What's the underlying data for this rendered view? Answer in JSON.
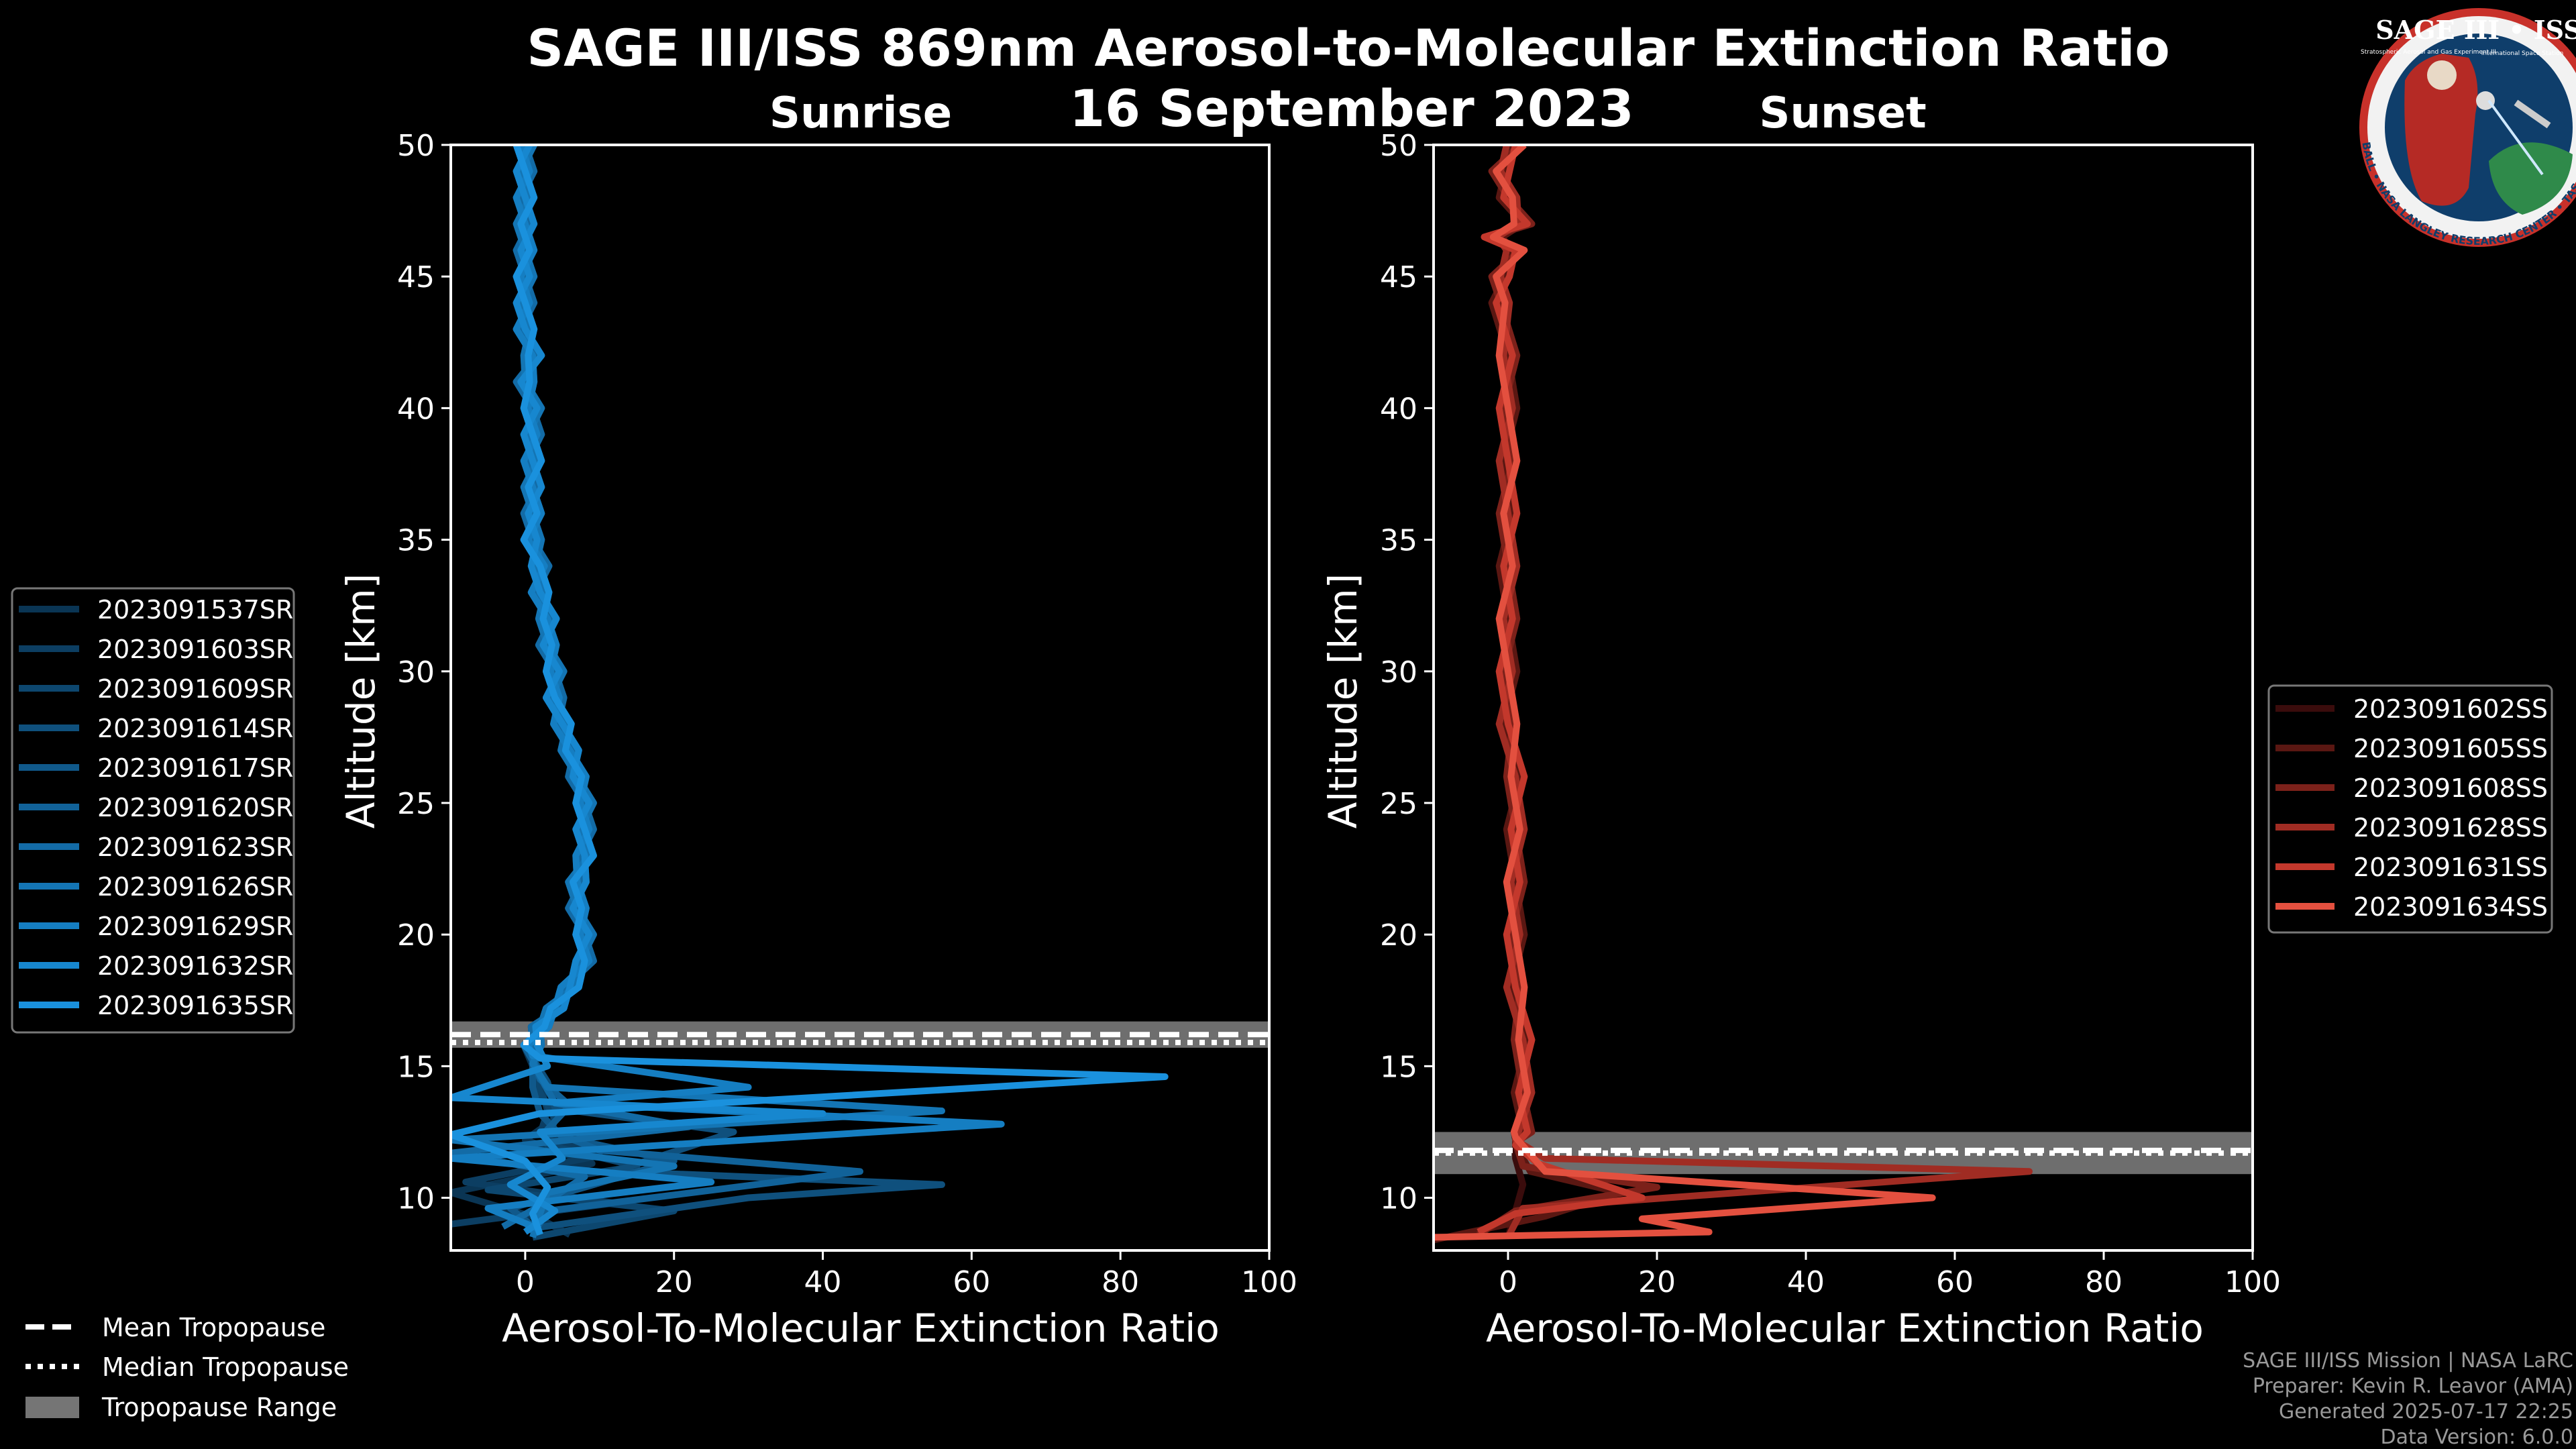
{
  "title_line1": "SAGE III/ISS 869nm Aerosol-to-Molecular Extinction Ratio",
  "title_line2": "16 September 2023",
  "logo": {
    "title": "SAGE III • ISS",
    "subtitle": "Stratospheric Aerosol and Gas Experiment III",
    "subtitle2": "International Space Station",
    "ring": "BALL • NASA LANGLEY RESEARCH CENTER • TAS-I • ESA"
  },
  "credits": [
    "SAGE III/ISS Mission | NASA LaRC",
    "Preparer: Kevin R. Leavor (AMA)",
    "Generated 2025-07-17 22:25",
    "Data Version: 6.0.0"
  ],
  "tropo_legend": {
    "mean": "Mean Tropopause",
    "median": "Median Tropopause",
    "range": "Tropopause Range"
  },
  "chart_data": [
    {
      "type": "line",
      "title": "Sunrise",
      "xlabel": "Aerosol-To-Molecular Extinction Ratio",
      "ylabel": "Altitude [km]",
      "xlim": [
        -10,
        100
      ],
      "ylim": [
        8,
        50
      ],
      "xticks": [
        0,
        20,
        40,
        60,
        80,
        100
      ],
      "yticks": [
        10,
        15,
        20,
        25,
        30,
        35,
        40,
        45,
        50
      ],
      "tropopause": {
        "mean": 16.2,
        "median": 15.9,
        "range": [
          15.7,
          16.7
        ]
      },
      "legend_position": "left",
      "series": [
        {
          "name": "2023091537SR",
          "color": "#0a3554",
          "x": [
            6,
            2,
            -10,
            9,
            0,
            4,
            2,
            1
          ],
          "y": [
            8.6,
            9.2,
            10.2,
            11.3,
            12.2,
            13.0,
            14.0,
            15.0
          ]
        },
        {
          "name": "2023091603SR",
          "color": "#0c3e62",
          "x": [
            -10,
            12,
            -8,
            10,
            2,
            3,
            2,
            1
          ],
          "y": [
            9.0,
            9.8,
            10.6,
            11.6,
            12.4,
            13.3,
            14.3,
            15.2
          ]
        },
        {
          "name": "2023091609SR",
          "color": "#0d476f",
          "x": [
            1,
            20,
            -5,
            15,
            3,
            4,
            2,
            1
          ],
          "y": [
            8.5,
            9.5,
            10.3,
            11.2,
            12.0,
            13.0,
            14.0,
            15.1
          ]
        },
        {
          "name": "2023091614SR",
          "color": "#0f507d",
          "x": [
            0,
            30,
            56,
            12,
            28,
            4,
            3,
            1
          ],
          "y": [
            8.8,
            10.0,
            10.5,
            11.0,
            12.5,
            13.4,
            14.4,
            15.3
          ]
        },
        {
          "name": "2023091617SR",
          "color": "#10598b",
          "x": [
            2,
            -2,
            8,
            20,
            5,
            2,
            1,
            1
          ],
          "y": [
            8.7,
            9.6,
            10.4,
            11.4,
            12.3,
            13.2,
            14.2,
            15.0
          ]
        },
        {
          "name": "2023091620SR",
          "color": "#116299",
          "x": [
            1,
            3,
            45,
            10,
            3,
            6,
            2,
            1
          ],
          "y": [
            8.6,
            9.5,
            11.0,
            11.8,
            12.6,
            13.5,
            14.5,
            15.2
          ]
        },
        {
          "name": "2023091623SR",
          "color": "#136ba6",
          "x": [
            -3,
            2,
            8,
            -10,
            22,
            4,
            2,
            1
          ],
          "y": [
            8.9,
            9.7,
            10.8,
            11.7,
            12.7,
            13.6,
            14.6,
            15.3
          ]
        },
        {
          "name": "2023091626SR",
          "color": "#1475b4",
          "x": [
            1,
            2,
            3,
            20,
            -10,
            56,
            3,
            1
          ],
          "y": [
            8.5,
            9.4,
            10.2,
            11.2,
            12.2,
            13.3,
            14.2,
            15.1
          ]
        },
        {
          "name": "2023091629SR",
          "color": "#157ec2",
          "x": [
            2,
            -5,
            25,
            -10,
            64,
            4,
            30,
            1
          ],
          "y": [
            8.8,
            9.6,
            10.6,
            11.5,
            12.8,
            13.6,
            14.2,
            15.4
          ]
        },
        {
          "name": "2023091632SR",
          "color": "#1787cf",
          "x": [
            0,
            4,
            -2,
            5,
            2,
            40,
            -10,
            3
          ],
          "y": [
            8.7,
            9.5,
            10.5,
            11.5,
            12.5,
            13.2,
            13.8,
            15.0
          ]
        },
        {
          "name": "2023091635SR",
          "color": "#1a91dd",
          "x": [
            2,
            1,
            3,
            0,
            -10,
            2,
            86,
            2
          ],
          "y": [
            8.6,
            9.4,
            10.4,
            11.4,
            12.4,
            13.2,
            14.6,
            15.3
          ]
        }
      ],
      "common_upper": {
        "y": [
          15.8,
          16.5,
          17.2,
          18.0,
          19.0,
          20.0,
          21.0,
          22.0,
          23.0,
          24.0,
          25.0,
          26.0,
          27.0,
          28.0,
          29.0,
          30.0,
          31.0,
          32.0,
          33.0,
          34.0,
          35.0,
          36.0,
          37.0,
          38.0,
          39.0,
          40.0,
          41.0,
          42.0,
          43.0,
          44.0,
          45.0,
          46.0,
          47.0,
          48.0,
          49.0,
          50.0
        ],
        "x": [
          1,
          2,
          4,
          6,
          8,
          8,
          7,
          7,
          8,
          8,
          8,
          7,
          6,
          5,
          4,
          4,
          3,
          3,
          2,
          2,
          1,
          1,
          1,
          1,
          1,
          1,
          0,
          1,
          0,
          0,
          0,
          0,
          0,
          0,
          0,
          0
        ]
      }
    },
    {
      "type": "line",
      "title": "Sunset",
      "xlabel": "Aerosol-To-Molecular Extinction Ratio",
      "ylabel": "Altitude [km]",
      "xlim": [
        -10,
        100
      ],
      "ylim": [
        8,
        50
      ],
      "xticks": [
        0,
        20,
        40,
        60,
        80,
        100
      ],
      "yticks": [
        10,
        15,
        20,
        25,
        30,
        35,
        40,
        45,
        50
      ],
      "tropopause": {
        "mean": 11.8,
        "median": 11.7,
        "range": [
          10.9,
          12.5
        ]
      },
      "legend_position": "right",
      "series": [
        {
          "name": "2023091602SS",
          "color": "#3a0c0c",
          "x": [
            0,
            1,
            2,
            1,
            1
          ],
          "y": [
            8.5,
            9.5,
            10.5,
            11.5,
            12.2
          ]
        },
        {
          "name": "2023091605SS",
          "color": "#5a1712",
          "x": [
            -10,
            5,
            15,
            3,
            1
          ],
          "y": [
            8.4,
            9.3,
            10.2,
            11.0,
            12.0
          ]
        },
        {
          "name": "2023091608SS",
          "color": "#7c211a",
          "x": [
            -4,
            1,
            20,
            2,
            1
          ],
          "y": [
            8.6,
            9.5,
            10.4,
            11.2,
            12.1
          ]
        },
        {
          "name": "2023091628SS",
          "color": "#a02c23",
          "x": [
            0,
            2,
            70,
            5,
            1
          ],
          "y": [
            8.5,
            9.6,
            11.0,
            11.5,
            12.2
          ]
        },
        {
          "name": "2023091631SS",
          "color": "#c3382c",
          "x": [
            -4,
            1,
            18,
            4,
            1
          ],
          "y": [
            8.7,
            9.4,
            10.0,
            11.3,
            12.0
          ]
        },
        {
          "name": "2023091634SS",
          "color": "#e3503f",
          "x": [
            -10,
            27,
            18,
            57,
            5,
            1
          ],
          "y": [
            8.5,
            8.7,
            9.2,
            10.0,
            11.0,
            12.3
          ]
        }
      ],
      "common_upper": {
        "y": [
          12.5,
          14.0,
          16.0,
          18.0,
          20.0,
          22.0,
          24.0,
          26.0,
          28.0,
          30.0,
          32.0,
          34.0,
          36.0,
          38.0,
          40.0,
          42.0,
          44.0,
          45.0,
          46.0,
          46.5,
          47.0,
          48.0,
          49.0,
          50.0
        ],
        "x": [
          2,
          2,
          2,
          1,
          1,
          1,
          1,
          1,
          0,
          0,
          0,
          0,
          0,
          0,
          0,
          0,
          -1,
          -1,
          1,
          -2,
          2,
          0,
          -1,
          1
        ]
      }
    }
  ]
}
